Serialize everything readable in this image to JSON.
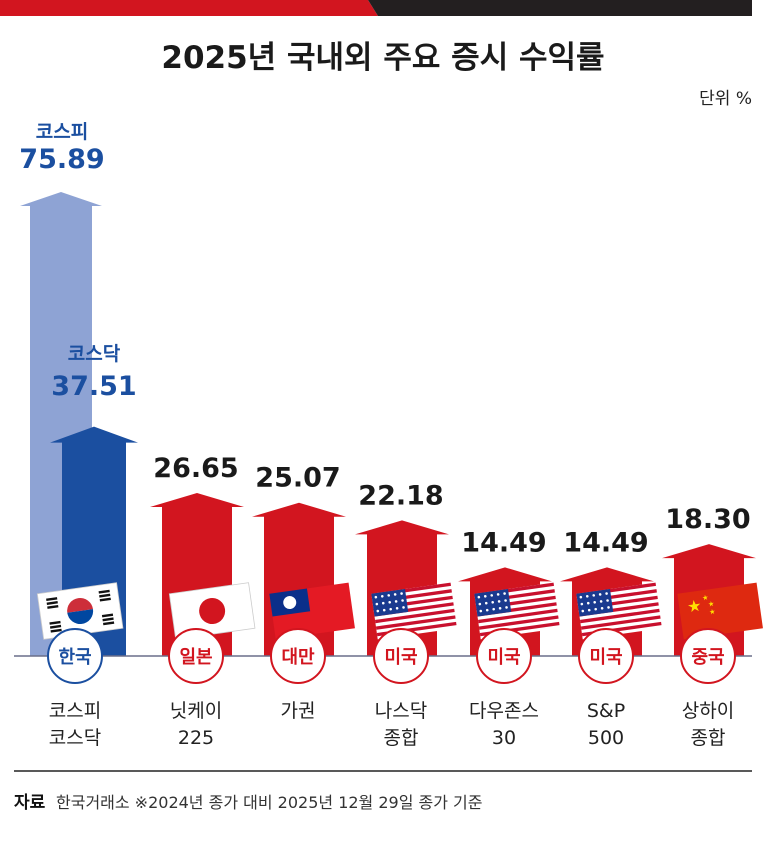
{
  "chart_data": {
    "type": "bar",
    "title": "2025년 국내외 주요 증시 수익률",
    "unit": "단위 %",
    "ylim": [
      0,
      80
    ],
    "groups": [
      {
        "country": "한국",
        "flag": "korea-flag",
        "label_lines": [
          "코스피",
          "코스닥"
        ],
        "bars": [
          {
            "name": "코스피",
            "value": 75.89,
            "color": "#8ea3d4"
          },
          {
            "name": "코스닥",
            "value": 37.51,
            "color": "#1b4fa0"
          }
        ]
      },
      {
        "country": "일본",
        "flag": "japan-flag",
        "label_lines": [
          "닛케이",
          "225"
        ],
        "bars": [
          {
            "name": "닛케이 225",
            "value": 26.65,
            "color": "#d2151f"
          }
        ]
      },
      {
        "country": "대만",
        "flag": "taiwan-flag",
        "label_lines": [
          "가권"
        ],
        "bars": [
          {
            "name": "가권",
            "value": 25.07,
            "color": "#d2151f"
          }
        ]
      },
      {
        "country": "미국",
        "flag": "usa-flag",
        "label_lines": [
          "나스닥",
          "종합"
        ],
        "bars": [
          {
            "name": "나스닥 종합",
            "value": 22.18,
            "color": "#d2151f"
          }
        ]
      },
      {
        "country": "미국",
        "flag": "usa-flag",
        "label_lines": [
          "다우존스",
          "30"
        ],
        "bars": [
          {
            "name": "다우존스 30",
            "value": 14.49,
            "color": "#d2151f"
          }
        ]
      },
      {
        "country": "미국",
        "flag": "usa-flag",
        "label_lines": [
          "S&P",
          "500"
        ],
        "bars": [
          {
            "name": "S&P 500",
            "value": 14.49,
            "color": "#d2151f"
          }
        ]
      },
      {
        "country": "중국",
        "flag": "china-flag",
        "label_lines": [
          "상하이",
          "종합"
        ],
        "bars": [
          {
            "name": "상하이 종합",
            "value": 18.3,
            "color": "#d2151f"
          }
        ]
      }
    ]
  },
  "colors": {
    "korea_light": "#8ea3d4",
    "korea_dark": "#1b4fa0",
    "red": "#d2151f",
    "dark": "#231f20",
    "axis": "#6a6f8a"
  },
  "footer": {
    "label": "자료",
    "text": "한국거래소 ※2024년 종가 대비 2025년 12월 29일 종가 기준"
  }
}
